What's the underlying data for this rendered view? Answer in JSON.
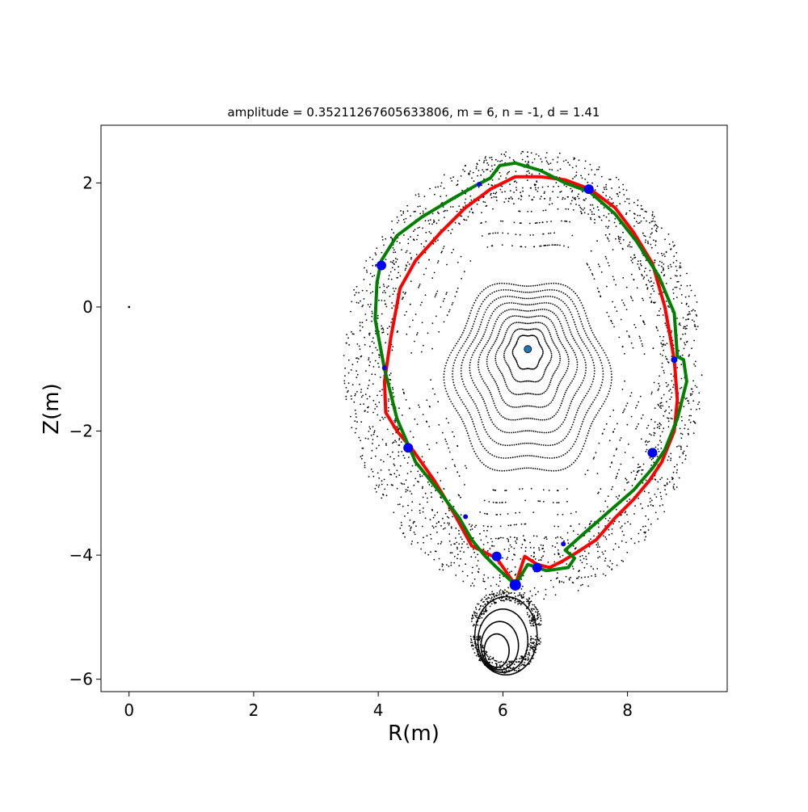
{
  "chart_data": {
    "type": "scatter",
    "title": "amplitude = 0.35211267605633806, m = 6, n = -1, d = 1.41",
    "xlabel": "R(m)",
    "ylabel": "Z(m)",
    "xlim": [
      -0.45,
      9.6
    ],
    "ylim": [
      -6.2,
      2.93
    ],
    "xticks": [
      0,
      2,
      4,
      6,
      8
    ],
    "xtick_labels": [
      "0",
      "2",
      "4",
      "6",
      "8"
    ],
    "yticks": [
      2,
      0,
      -2,
      -4,
      -6
    ],
    "ytick_labels": [
      "2",
      "0",
      "−2",
      "−4",
      "−6"
    ],
    "grid": false,
    "legend": "none",
    "colors": {
      "poincare": "#000000",
      "curve_red": "#ff0000",
      "curve_green": "#008000",
      "fixed_points": "#0000ff",
      "magnetic_axis": "#1f77b4"
    },
    "magnetic_axis": {
      "x": 6.4,
      "y": -0.68
    },
    "origin_marker": {
      "x": 0.0,
      "y": 0.0
    },
    "series": [
      {
        "kind": "line",
        "color": "#ff0000",
        "x": [
          6.2,
          5.9,
          5.5,
          5.2,
          4.9,
          4.55,
          4.3,
          4.12,
          4.1,
          4.2,
          4.35,
          4.6,
          5.0,
          5.4,
          5.8,
          6.2,
          6.6,
          7.0,
          7.4,
          7.8,
          8.1,
          8.4,
          8.6,
          8.75,
          8.8,
          8.75,
          8.55,
          8.35,
          8.1,
          7.8,
          7.5,
          7.2,
          6.95,
          6.75,
          6.55,
          6.35,
          6.2
        ],
        "y": [
          -4.48,
          -4.05,
          -3.85,
          -3.3,
          -2.8,
          -2.3,
          -2.0,
          -1.7,
          -1.2,
          -0.5,
          0.3,
          0.75,
          1.2,
          1.6,
          1.9,
          2.1,
          2.1,
          2.05,
          1.9,
          1.6,
          1.2,
          0.7,
          0.0,
          -0.85,
          -1.5,
          -2.0,
          -2.5,
          -2.8,
          -3.1,
          -3.4,
          -3.75,
          -3.95,
          -4.1,
          -4.2,
          -4.15,
          -4.02,
          -4.48
        ]
      },
      {
        "kind": "line",
        "color": "#008000",
        "x": [
          6.2,
          5.9,
          5.7,
          5.5,
          5.3,
          5.0,
          4.6,
          4.3,
          4.1,
          3.95,
          3.98,
          4.05,
          4.3,
          4.7,
          5.2,
          5.55,
          5.8,
          5.95,
          6.2,
          6.6,
          7.0,
          7.4,
          7.8,
          8.15,
          8.5,
          8.75,
          8.8,
          8.9,
          8.95,
          8.8,
          8.6,
          8.4,
          8.1,
          7.7,
          7.3,
          7.0,
          7.15,
          7.05,
          6.7,
          6.4,
          6.2
        ],
        "y": [
          -4.48,
          -4.2,
          -4.0,
          -3.75,
          -3.4,
          -3.0,
          -2.5,
          -1.8,
          -1.0,
          -0.2,
          0.4,
          0.75,
          1.15,
          1.45,
          1.75,
          1.95,
          2.08,
          2.28,
          2.32,
          2.2,
          2.0,
          1.85,
          1.5,
          1.05,
          0.5,
          -0.1,
          -0.8,
          -0.85,
          -1.2,
          -1.8,
          -2.3,
          -2.6,
          -2.95,
          -3.3,
          -3.65,
          -3.92,
          -4.05,
          -4.2,
          -4.25,
          -4.15,
          -4.48
        ]
      },
      {
        "kind": "scatter",
        "color": "#0000ff",
        "x": [
          6.2,
          4.05,
          5.62,
          7.38,
          8.75,
          8.4,
          6.55,
          5.9,
          4.48,
          4.1,
          5.4,
          6.97
        ],
        "y": [
          -4.48,
          0.67,
          1.98,
          1.9,
          -0.85,
          -2.35,
          -4.2,
          -4.02,
          -2.27,
          -0.98,
          -3.38,
          -3.82
        ],
        "sizes": [
          7,
          6,
          3,
          6,
          4,
          6,
          6,
          6,
          6,
          3,
          3,
          3
        ]
      }
    ]
  }
}
